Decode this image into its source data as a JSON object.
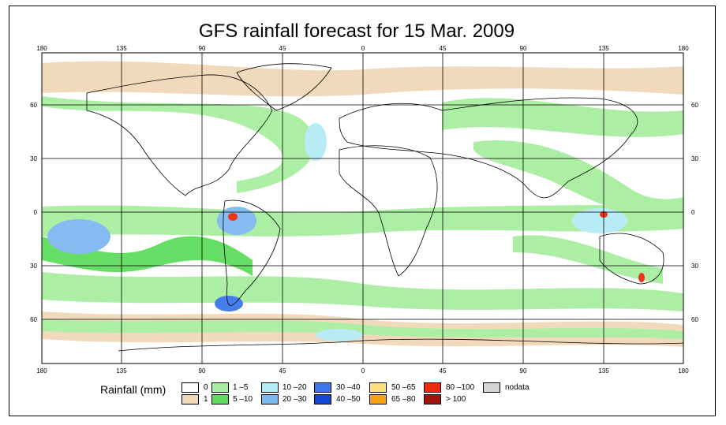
{
  "title": "GFS rainfall forecast for 15 Mar. 2009",
  "lon_ticks": [
    "180",
    "135",
    "90",
    "45",
    "0",
    "45",
    "90",
    "135",
    "180"
  ],
  "lat_ticks": [
    "60",
    "30",
    "0",
    "30",
    "60"
  ],
  "legend": {
    "label": "Rainfall (mm)",
    "items": [
      {
        "text": "0",
        "color": "#ffffff"
      },
      {
        "text": "1",
        "color": "#f0d9b8"
      },
      {
        "text": "1 –5",
        "color": "#a8eea0"
      },
      {
        "text": "5 –10",
        "color": "#5edc5c"
      },
      {
        "text": "10 –20",
        "color": "#b4ecf6"
      },
      {
        "text": "20 –30",
        "color": "#7fb8f0"
      },
      {
        "text": "30 –40",
        "color": "#3c78ea"
      },
      {
        "text": "40 –50",
        "color": "#1448d8"
      },
      {
        "text": "50 –65",
        "color": "#fde07c"
      },
      {
        "text": "65 –80",
        "color": "#f5a214"
      },
      {
        "text": "80 –100",
        "color": "#ee2a0c"
      },
      {
        "text": "> 100",
        "color": "#a01410"
      },
      {
        "text": "nodata",
        "color": "#d6d6d6"
      }
    ]
  }
}
